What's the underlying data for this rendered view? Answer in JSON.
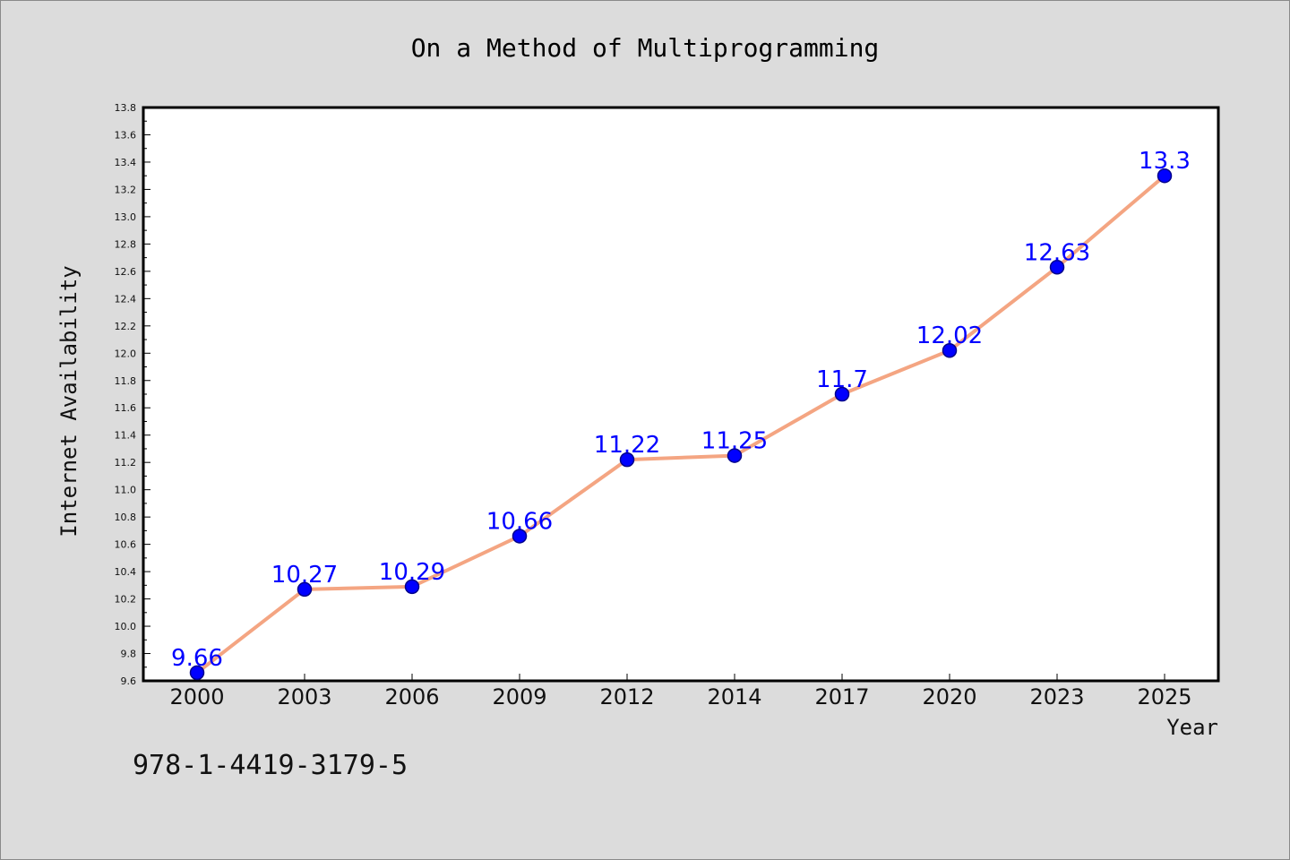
{
  "chart_data": {
    "type": "line",
    "title": "On a Method of Multiprogramming",
    "xlabel": "Year",
    "ylabel": "Internet Availability",
    "categories": [
      "2000",
      "2003",
      "2006",
      "2009",
      "2012",
      "2014",
      "2017",
      "2020",
      "2023",
      "2025"
    ],
    "series": [
      {
        "values": [
          9.66,
          10.27,
          10.29,
          10.66,
          11.22,
          11.25,
          11.7,
          12.02,
          12.63,
          13.3
        ],
        "labels": [
          "9.66",
          "10.27",
          "10.29",
          "10.66",
          "11.22",
          "11.25",
          "11.7",
          "12.02",
          "12.63",
          "13.3"
        ]
      }
    ],
    "ylim": [
      9.6,
      13.8
    ],
    "yticks": [
      "9.6",
      "9.8",
      "10.0",
      "10.2",
      "10.4",
      "10.6",
      "10.8",
      "11.0",
      "11.2",
      "11.4",
      "11.6",
      "11.8",
      "12.0",
      "12.2",
      "12.4",
      "12.6",
      "12.8",
      "13.0",
      "13.2",
      "13.4",
      "13.6",
      "13.8"
    ],
    "grid": false,
    "legend": "none",
    "colors": {
      "line": "#f4a582",
      "marker_fill": "#0000ff",
      "marker_edge": "#00008b",
      "data_label": "#0000ff",
      "plot_background": "#ffffff",
      "figure_background": "#dcdcdc"
    }
  },
  "footer": {
    "isbn": "978-1-4419-3179-5"
  }
}
